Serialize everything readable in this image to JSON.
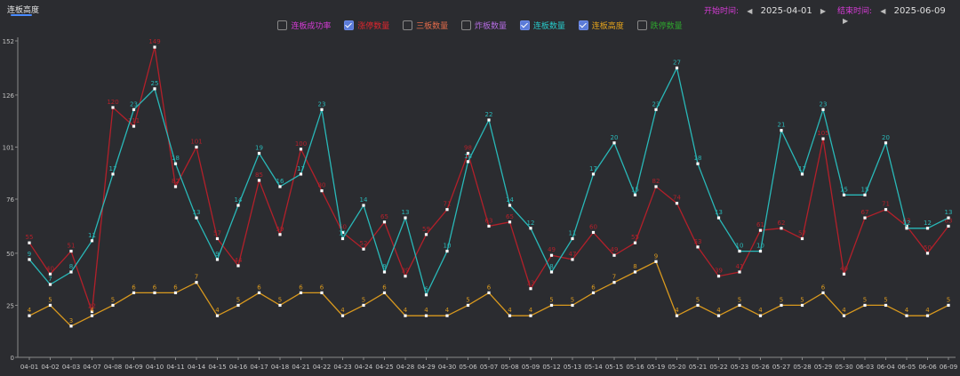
{
  "tab": {
    "label": "连板高度"
  },
  "range": {
    "start_label": "开始时间:",
    "start_value": "2025-04-01",
    "end_label": "结束时间:",
    "end_value": "2025-06-09",
    "prev_icon": "caret-left-icon",
    "next_icon": "caret-right-icon"
  },
  "legend": [
    {
      "label": "连板成功率",
      "checked": false,
      "color": "#d63bd6"
    },
    {
      "label": "涨停数量",
      "checked": true,
      "color": "#e0262e"
    },
    {
      "label": "三板数量",
      "checked": false,
      "color": "#e36b4a"
    },
    {
      "label": "炸板数量",
      "checked": false,
      "color": "#b36be0"
    },
    {
      "label": "连板数量",
      "checked": true,
      "color": "#27c9c9"
    },
    {
      "label": "连板高度",
      "checked": true,
      "color": "#e3a21c"
    },
    {
      "label": "跌停数量",
      "checked": false,
      "color": "#2ea52e"
    }
  ],
  "chart_data": {
    "type": "line",
    "categories": [
      "04-01",
      "04-02",
      "04-03",
      "04-07",
      "04-08",
      "04-09",
      "04-10",
      "04-11",
      "04-14",
      "04-15",
      "04-16",
      "04-17",
      "04-18",
      "04-21",
      "04-22",
      "04-23",
      "04-24",
      "04-25",
      "04-28",
      "04-29",
      "04-30",
      "05-06",
      "05-07",
      "05-08",
      "05-09",
      "05-12",
      "05-13",
      "05-14",
      "05-15",
      "05-16",
      "05-19",
      "05-20",
      "05-21",
      "05-22",
      "05-23",
      "05-26",
      "05-27",
      "05-28",
      "05-29",
      "05-30",
      "06-03",
      "06-04",
      "06-05",
      "06-06",
      "06-09"
    ],
    "yticks": [
      0,
      25,
      50,
      76,
      101,
      126,
      152
    ],
    "ylim": [
      0,
      152
    ],
    "grid": false,
    "series": [
      {
        "name": "涨停数量",
        "color": "#b3202a",
        "values": [
          55,
          40,
          51,
          22,
          120,
          111,
          149,
          82,
          101,
          57,
          44,
          85,
          59,
          100,
          80,
          60,
          52,
          65,
          39,
          59,
          71,
          98,
          63,
          65,
          33,
          49,
          47,
          60,
          49,
          55,
          82,
          74,
          53,
          39,
          41,
          61,
          62,
          57,
          105,
          40,
          67,
          71,
          63,
          50,
          63
        ],
        "labels": [
          "55",
          "40",
          "51",
          "22",
          "120",
          "111",
          "149",
          "82",
          "101",
          "57",
          "44",
          "85",
          "59",
          "100",
          "80",
          "60",
          "52",
          "65",
          "39",
          "59",
          "71",
          "98",
          "63",
          "65",
          "33",
          "49",
          "47",
          "60",
          "49",
          "55",
          "82",
          "74",
          "53",
          "39",
          "41",
          "61",
          "62",
          "57",
          "105",
          "40",
          "67",
          "71",
          "63",
          "50",
          "63"
        ]
      },
      {
        "name": "连板数量",
        "color": "#29b8b8",
        "values": [
          47,
          35,
          41,
          56,
          88,
          119,
          129,
          93,
          67,
          47,
          73,
          98,
          82,
          88,
          119,
          57,
          73,
          41,
          67,
          30,
          51,
          94,
          114,
          73,
          62,
          41,
          57,
          88,
          103,
          78,
          119,
          139,
          93,
          67,
          51,
          51,
          109,
          88,
          119,
          78,
          78,
          103,
          62,
          62,
          67
        ],
        "labels": [
          "9",
          "7",
          "8",
          "11",
          "17",
          "23",
          "25",
          "18",
          "13",
          "9",
          "14",
          "19",
          "16",
          "17",
          "23",
          "11",
          "14",
          "8",
          "13",
          "6",
          "10",
          "18",
          "22",
          "14",
          "12",
          "8",
          "11",
          "17",
          "20",
          "15",
          "23",
          "27",
          "18",
          "13",
          "10",
          "10",
          "21",
          "17",
          "23",
          "15",
          "15",
          "20",
          "12",
          "12",
          "13"
        ]
      },
      {
        "name": "连板高度",
        "color": "#d9991e",
        "values": [
          20,
          25,
          15,
          20,
          25,
          31,
          31,
          31,
          36,
          20,
          25,
          31,
          25,
          31,
          31,
          20,
          25,
          31,
          20,
          20,
          20,
          25,
          31,
          20,
          20,
          25,
          25,
          31,
          36,
          41,
          46,
          20,
          25,
          20,
          25,
          20,
          25,
          25,
          31,
          20,
          25,
          25,
          20,
          20,
          25
        ],
        "labels": [
          "4",
          "5",
          "3",
          "4",
          "5",
          "6",
          "6",
          "6",
          "7",
          "4",
          "5",
          "6",
          "5",
          "6",
          "6",
          "4",
          "5",
          "6",
          "4",
          "4",
          "4",
          "5",
          "6",
          "4",
          "4",
          "5",
          "5",
          "6",
          "7",
          "8",
          "9",
          "4",
          "5",
          "4",
          "5",
          "4",
          "5",
          "5",
          "6",
          "4",
          "5",
          "5",
          "4",
          "4",
          "5"
        ]
      }
    ]
  }
}
